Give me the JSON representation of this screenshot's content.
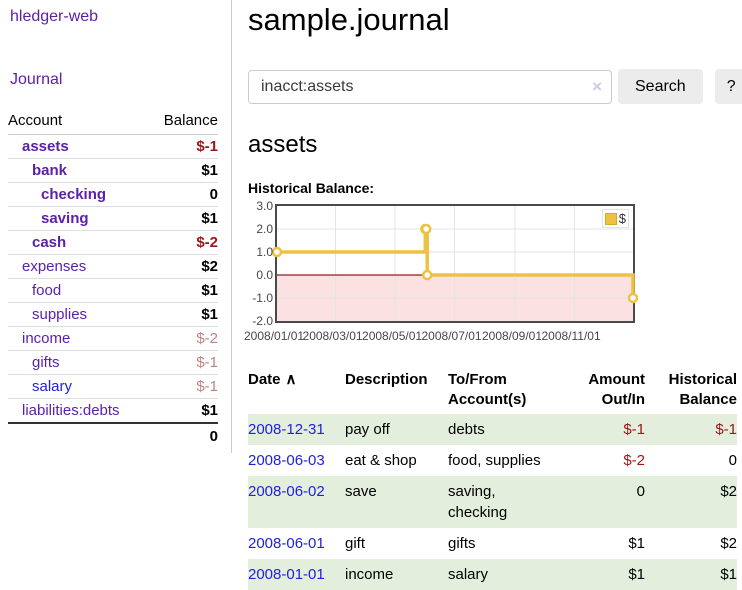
{
  "app": {
    "brand": "hledger-web"
  },
  "sidebar": {
    "journal_link": "Journal",
    "accounts_header": {
      "account": "Account",
      "balance": "Balance"
    },
    "accounts": [
      {
        "name": "assets",
        "indent": 1,
        "bold": true,
        "balance": "$-1",
        "neg": "strong",
        "link_color": "purple"
      },
      {
        "name": "bank",
        "indent": 2,
        "bold": true,
        "balance": "$1",
        "neg": "none",
        "link_color": "purple"
      },
      {
        "name": "checking",
        "indent": 3,
        "bold": true,
        "balance": "0",
        "neg": "none",
        "link_color": "purple"
      },
      {
        "name": "saving",
        "indent": 3,
        "bold": true,
        "balance": "$1",
        "neg": "none",
        "link_color": "purple"
      },
      {
        "name": "cash",
        "indent": 2,
        "bold": true,
        "balance": "$-2",
        "neg": "strong",
        "link_color": "purple"
      },
      {
        "name": "expenses",
        "indent": 1,
        "bold": false,
        "balance": "$2",
        "neg": "none",
        "link_color": "purple"
      },
      {
        "name": "food",
        "indent": 2,
        "bold": false,
        "balance": "$1",
        "neg": "none",
        "link_color": "purple"
      },
      {
        "name": "supplies",
        "indent": 2,
        "bold": false,
        "balance": "$1",
        "neg": "none",
        "link_color": "purple"
      },
      {
        "name": "income",
        "indent": 1,
        "bold": false,
        "balance": "$-2",
        "neg": "muted",
        "link_color": "purple"
      },
      {
        "name": "gifts",
        "indent": 2,
        "bold": false,
        "balance": "$-1",
        "neg": "muted",
        "link_color": "purple"
      },
      {
        "name": "salary",
        "indent": 2,
        "bold": false,
        "balance": "$-1",
        "neg": "muted",
        "link_color": "blue"
      },
      {
        "name": "liabilities:debts",
        "indent": 1,
        "bold": false,
        "balance": "$1",
        "neg": "none",
        "link_color": "purple"
      }
    ],
    "total": "0"
  },
  "header": {
    "title": "sample.journal"
  },
  "search": {
    "value": "inacct:assets",
    "clear_icon": "×",
    "button": "Search",
    "help_button": "?"
  },
  "account_page": {
    "heading": "assets",
    "chart_label": "Historical Balance:"
  },
  "chart_data": {
    "type": "line",
    "step": true,
    "title": "Historical Balance",
    "series": [
      {
        "name": "$",
        "color": "#edc240",
        "points": [
          [
            "2008-01-01",
            1
          ],
          [
            "2008-06-01",
            2
          ],
          [
            "2008-06-02",
            2
          ],
          [
            "2008-06-03",
            0
          ],
          [
            "2008-12-31",
            -1
          ]
        ]
      }
    ],
    "x_range": [
      "2008-01-01",
      "2008-12-31"
    ],
    "y_range": [
      -2,
      3
    ],
    "x_ticks": [
      "2008/01/01",
      "2008/03/01",
      "2008/05/01",
      "2008/07/01",
      "2008/09/01",
      "2008/11/01"
    ],
    "y_ticks": [
      3.0,
      2.0,
      1.0,
      0.0,
      -1.0,
      -2.0
    ],
    "grid": true,
    "legend": {
      "position": "top-right",
      "label": "$"
    },
    "colors": {
      "line": "#edc240",
      "marker_fill": "#ffffff",
      "negative_region": "#fbe1e1",
      "zero_line": "#911d1d",
      "gridline": "#e4e4e4",
      "border": "#4a4a4a"
    }
  },
  "register": {
    "sort_indicator": "∧",
    "columns": [
      {
        "lines": [
          "Date"
        ],
        "sort": true,
        "align": "left"
      },
      {
        "lines": [
          "Description"
        ],
        "align": "left"
      },
      {
        "lines": [
          "To/From",
          "Account(s)"
        ],
        "align": "left"
      },
      {
        "lines": [
          "Amount",
          "Out/In"
        ],
        "align": "right"
      },
      {
        "lines": [
          "Historical",
          "Balance"
        ],
        "align": "right"
      }
    ],
    "rows": [
      {
        "date": "2008-12-31",
        "description": "pay off",
        "accounts": "debts",
        "amount": "$-1",
        "balance": "$-1"
      },
      {
        "date": "2008-06-03",
        "description": "eat & shop",
        "accounts": "food, supplies",
        "amount": "$-2",
        "balance": "0"
      },
      {
        "date": "2008-06-02",
        "description": "save",
        "accounts": "saving,\nchecking",
        "amount": "0",
        "balance": "$2"
      },
      {
        "date": "2008-06-01",
        "description": "gift",
        "accounts": "gifts",
        "amount": "$1",
        "balance": "$2"
      },
      {
        "date": "2008-01-01",
        "description": "income",
        "accounts": "salary",
        "amount": "$1",
        "balance": "$1"
      }
    ]
  },
  "colors": {
    "accent_purple": "#5c21a8",
    "link_blue": "#2121dd",
    "negative_red": "#9e1616",
    "muted_negative": "#c08383",
    "row_stripe_green": "#e3eedd",
    "chart_gold": "#edc240",
    "chart_negative_pink": "#fbe1e1",
    "zero_line_red": "#911d1d",
    "button_gray": "#ececec"
  }
}
